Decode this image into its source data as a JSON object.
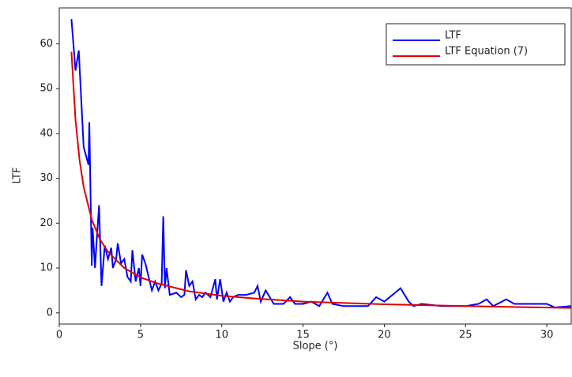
{
  "chart_data": {
    "type": "line",
    "xlabel": "Slope (°)",
    "ylabel": "LTF",
    "xlim": [
      0,
      31.5
    ],
    "ylim": [
      -2.5,
      68
    ],
    "xticks": [
      0,
      5,
      10,
      15,
      20,
      25,
      30
    ],
    "yticks": [
      0,
      10,
      20,
      30,
      40,
      50,
      60
    ],
    "legend": "upper right",
    "series": [
      {
        "name": "LTF",
        "color": "#0000ff",
        "x": [
          0.75,
          1.0,
          1.2,
          1.5,
          1.8,
          1.85,
          2.0,
          2.05,
          2.2,
          2.3,
          2.45,
          2.6,
          2.8,
          3.0,
          3.2,
          3.3,
          3.5,
          3.6,
          3.8,
          4.0,
          4.2,
          4.4,
          4.5,
          4.7,
          4.9,
          5.0,
          5.1,
          5.3,
          5.5,
          5.7,
          5.9,
          6.1,
          6.3,
          6.4,
          6.5,
          6.6,
          6.8,
          7.2,
          7.5,
          7.7,
          7.8,
          8.0,
          8.2,
          8.4,
          8.6,
          8.8,
          9.0,
          9.3,
          9.6,
          9.7,
          9.9,
          10.1,
          10.3,
          10.5,
          10.7,
          11.0,
          11.5,
          12.0,
          12.2,
          12.4,
          12.7,
          13.2,
          13.8,
          14.2,
          14.5,
          15.0,
          15.5,
          16.0,
          16.5,
          16.8,
          17.5,
          18.5,
          19.0,
          19.5,
          20.0,
          21.0,
          21.5,
          21.8,
          22.3,
          23.5,
          24.5,
          25.0,
          25.8,
          26.3,
          26.7,
          27.5,
          28.0,
          29.5,
          30.0,
          30.5,
          31.5
        ],
        "values": [
          65.5,
          54,
          58.5,
          37,
          33,
          42.5,
          10.5,
          19,
          10,
          16,
          24,
          6,
          15,
          12,
          14.5,
          10,
          12,
          15.5,
          11,
          12,
          8,
          7,
          14,
          7,
          10,
          6,
          13,
          11,
          8,
          5,
          7,
          5,
          6.5,
          21.5,
          5.5,
          10,
          4,
          4.5,
          3.5,
          4,
          9.5,
          6,
          7,
          3,
          4,
          3.5,
          4.5,
          3.5,
          7.5,
          3,
          7.5,
          2.5,
          4.5,
          2.5,
          3.5,
          4,
          4,
          4.5,
          6,
          2.5,
          5,
          2,
          2,
          3.5,
          2,
          2,
          2.5,
          1.5,
          4.5,
          2,
          1.5,
          1.5,
          1.5,
          3.5,
          2.5,
          5.5,
          2.5,
          1.5,
          2,
          1.5,
          1.5,
          1.5,
          2,
          3,
          1.5,
          3,
          2,
          2,
          2,
          1.2,
          1.5
        ]
      },
      {
        "name": "LTF Equation (7)",
        "color": "#e00000",
        "x": [
          0.75,
          1,
          1.25,
          1.5,
          2,
          2.5,
          3,
          4,
          5,
          6,
          8,
          10,
          12,
          15,
          20,
          25,
          31.5
        ],
        "values": [
          58.2,
          43,
          34.0,
          28.1,
          20.8,
          16.4,
          13.6,
          10.0,
          7.9,
          6.6,
          4.8,
          3.8,
          3.2,
          2.5,
          1.9,
          1.5,
          1.1
        ]
      }
    ]
  }
}
